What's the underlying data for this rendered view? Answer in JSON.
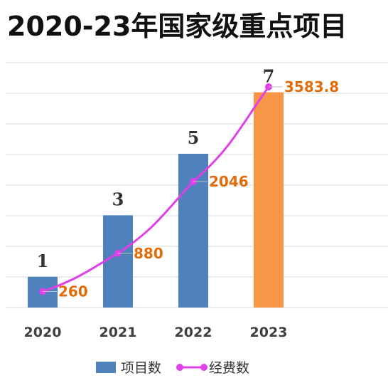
{
  "chart_data": {
    "type": "bar",
    "title": "2020-23年国家级重点项目",
    "categories": [
      "2020",
      "2021",
      "2022",
      "2023"
    ],
    "series": [
      {
        "name": "项目数",
        "type": "bar",
        "values": [
          1,
          3,
          5,
          7
        ],
        "axis": "left",
        "ylim": [
          0,
          7
        ]
      },
      {
        "name": "经费数",
        "type": "line",
        "values": [
          260,
          880,
          2046,
          3583.8
        ],
        "axis": "right",
        "ylim": [
          0,
          3583.8
        ]
      }
    ],
    "value_labels": {
      "bars": [
        "1",
        "3",
        "5",
        "7"
      ],
      "line": [
        "260",
        "880",
        "2046",
        "3583.8"
      ]
    },
    "grid": true,
    "legend_position": "bottom",
    "colors": {
      "bar": "#4f81bd",
      "bar_highlight": "#f79646",
      "line": "#e040e8",
      "line_label": "#e36c09",
      "grid": "#d9d9d9"
    }
  }
}
